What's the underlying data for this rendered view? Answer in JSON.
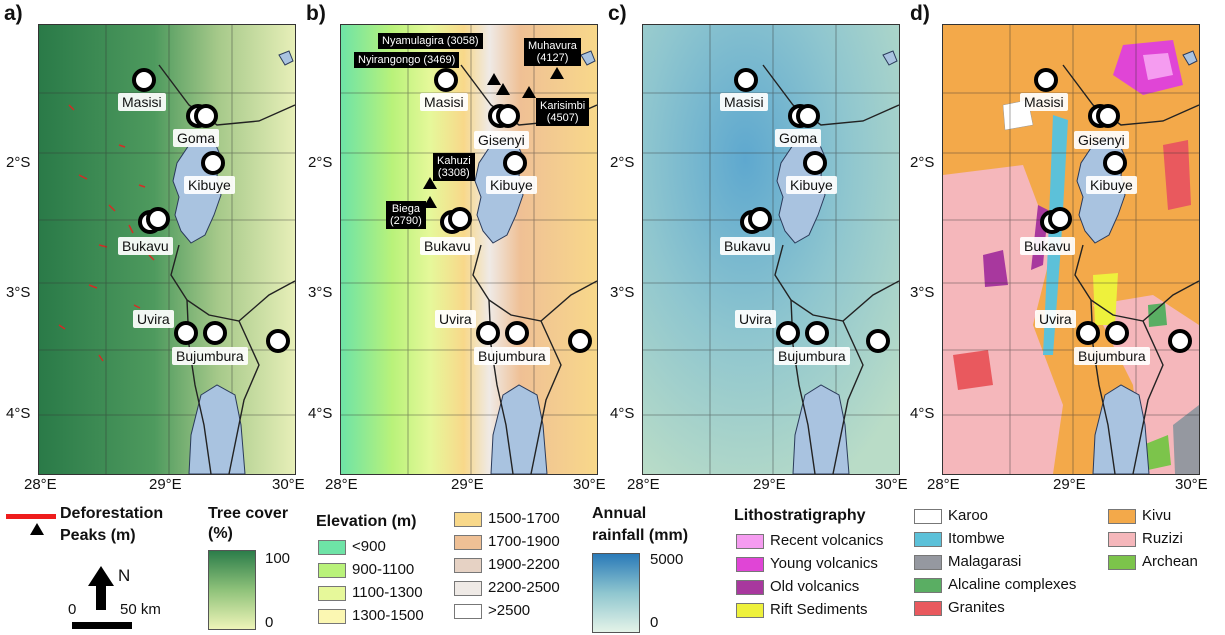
{
  "panels": [
    "a)",
    "b)",
    "c)",
    "d)"
  ],
  "ticks": {
    "lat": [
      "2°S",
      "3°S",
      "4°S"
    ],
    "lon": [
      "28°E",
      "29°E",
      "30°E"
    ]
  },
  "cities": {
    "masisi": "Masisi",
    "goma": "Goma",
    "gisenyi": "Gisenyi",
    "kibuye": "Kibuye",
    "bukavu": "Bukavu",
    "uvira": "Uvira",
    "bujumbura": "Bujumbura"
  },
  "peaks": {
    "nyamulagira": "Nyamulagira (3058)",
    "nyiragongo": "Nyirangongo (3469)",
    "muhavura_name": "Muhavura",
    "muhavura_elev": "(4127)",
    "karisimbi_name": "Karisimbi",
    "karisimbi_elev": "(4507)",
    "kahuzi_name": "Kahuzi",
    "kahuzi_elev": "(3308)",
    "biega_name": "Biega",
    "biega_elev": "(2790)"
  },
  "legend": {
    "deforestation": "Deforestation",
    "peaks": "Peaks (m)",
    "north": "N",
    "scale_zero": "0",
    "scale_end": "50 km",
    "tree_cover_title_1": "Tree cover",
    "tree_cover_title_2": "(%)",
    "tree_cover_max": "100",
    "tree_cover_min": "0",
    "elevation_title": "Elevation (m)",
    "elevation_classes": [
      {
        "label": "<900",
        "color": "#6ee3a6"
      },
      {
        "label": "900-1100",
        "color": "#b9f27a"
      },
      {
        "label": "1100-1300",
        "color": "#e6f89a"
      },
      {
        "label": "1300-1500",
        "color": "#fbf7b2"
      },
      {
        "label": "1500-1700",
        "color": "#f8d88a"
      },
      {
        "label": "1700-1900",
        "color": "#efc095"
      },
      {
        "label": "1900-2200",
        "color": "#e6d2c4"
      },
      {
        "label": "2200-2500",
        "color": "#efeae6"
      },
      {
        "label": ">2500",
        "color": "#ffffff"
      }
    ],
    "rainfall_title_1": "Annual",
    "rainfall_title_2": "rainfall (mm)",
    "rainfall_max": "5000",
    "rainfall_min": "0",
    "litho_title": "Lithostratigraphy",
    "litho_classes": [
      {
        "label": "Recent volcanics",
        "color": "#f59cf0"
      },
      {
        "label": "Young volcanics",
        "color": "#e045d6"
      },
      {
        "label": "Old volcanics",
        "color": "#a8389e"
      },
      {
        "label": "Rift Sediments",
        "color": "#eef13c"
      },
      {
        "label": "Karoo",
        "color": "#ffffff"
      },
      {
        "label": "Itombwe",
        "color": "#5cc1d9"
      },
      {
        "label": "Malagarasi",
        "color": "#9598a0"
      },
      {
        "label": "Alcaline complexes",
        "color": "#5aae63"
      },
      {
        "label": "Granites",
        "color": "#e9595e"
      },
      {
        "label": "Kivu",
        "color": "#f3a94a"
      },
      {
        "label": "Ruzizi",
        "color": "#f5b7bb"
      },
      {
        "label": "Archean",
        "color": "#7cc44b"
      }
    ]
  },
  "colors": {
    "lake": "#a9c3e0",
    "tree_dark": "#2c7d4a",
    "tree_light": "#eef4b8",
    "rain_dark": "#2a7ab8",
    "rain_light": "#e4f3e8",
    "deforestation": "#ee1c1c"
  }
}
